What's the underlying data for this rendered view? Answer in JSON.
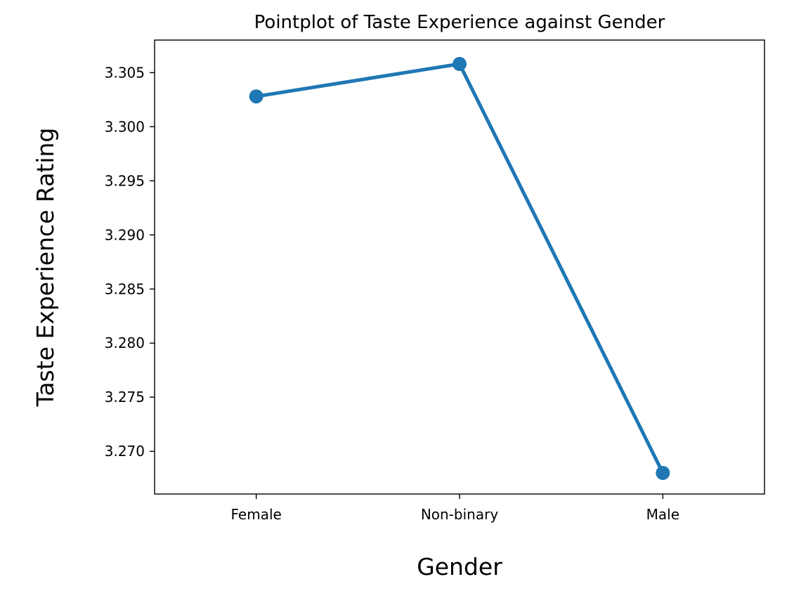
{
  "chart_data": {
    "type": "line",
    "title": "Pointplot of Taste Experience against Gender",
    "xlabel": "Gender",
    "ylabel": "Taste Experience Rating",
    "categories": [
      "Female",
      "Non-binary",
      "Male"
    ],
    "series": [
      {
        "values": [
          3.3028,
          3.3058,
          3.268
        ],
        "color": "#1f77b4"
      }
    ],
    "yticks": [
      "3.270",
      "3.275",
      "3.280",
      "3.285",
      "3.290",
      "3.295",
      "3.300",
      "3.305"
    ],
    "ylim": [
      3.26605,
      3.30801
    ],
    "grid": false,
    "legend": false
  }
}
